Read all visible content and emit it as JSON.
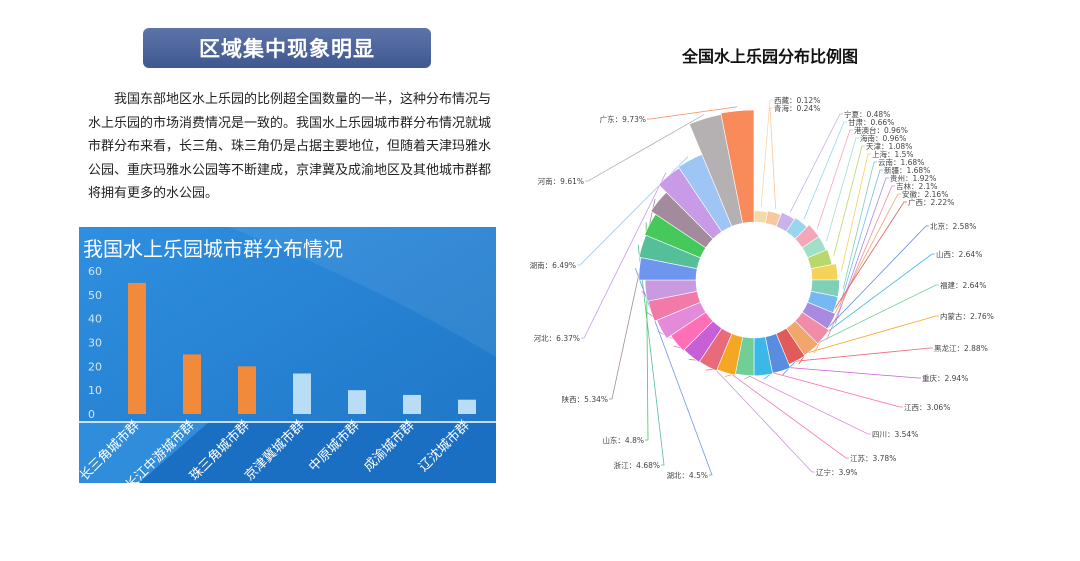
{
  "left": {
    "heading": "区域集中现象明显",
    "paragraph": "我国东部地区水上乐园的比例超全国数量的一半，这种分布情况与水上乐园的市场消费情况是一致的。我国水上乐园城市群分布情况就城市群分布来看，长三角、珠三角仍是占据主要地位，但随着天津玛雅水公园、重庆玛雅水公园等不断建成，京津冀及成渝地区及其他城市群都将拥有更多的水公园。"
  },
  "chart_data": [
    {
      "type": "bar",
      "title": "我国水上乐园城市群分布情况",
      "categories": [
        "长三角城市群",
        "长江中游城市群",
        "珠三角城市群",
        "京津冀城市群",
        "中原城市群",
        "成渝城市群",
        "辽沈城市群"
      ],
      "values": [
        55,
        25,
        20,
        17,
        10,
        8,
        6
      ],
      "colors": [
        "#f28a3c",
        "#f28a3c",
        "#f28a3c",
        "#b9dcf7",
        "#b9dcf7",
        "#b9dcf7",
        "#b9dcf7"
      ],
      "yticks": [
        0,
        10,
        20,
        30,
        40,
        50,
        60
      ],
      "ylim": [
        0,
        60
      ],
      "grid": false,
      "background": "#2a86d6"
    },
    {
      "type": "pie",
      "variant": "rose-donut",
      "title": "全国水上乐园分布比例图",
      "label_format": "{name}：{value}%",
      "slices": [
        {
          "name": "西藏",
          "value": 0.12,
          "color": "#f5d9a8"
        },
        {
          "name": "青海",
          "value": 0.24,
          "color": "#f7c7a0"
        },
        {
          "name": "宁夏",
          "value": 0.48,
          "color": "#c9b3e8"
        },
        {
          "name": "甘肃",
          "value": 0.66,
          "color": "#9ad5f0"
        },
        {
          "name": "港澳台",
          "value": 0.96,
          "color": "#f4a7b9"
        },
        {
          "name": "海南",
          "value": 0.96,
          "color": "#a0e0c8"
        },
        {
          "name": "天津",
          "value": 1.08,
          "color": "#b8d86b"
        },
        {
          "name": "上海",
          "value": 1.5,
          "color": "#f3d35a"
        },
        {
          "name": "云南",
          "value": 1.68,
          "color": "#7fd0b6"
        },
        {
          "name": "新疆",
          "value": 1.68,
          "color": "#76b9f2"
        },
        {
          "name": "贵州",
          "value": 1.92,
          "color": "#a88be0"
        },
        {
          "name": "吉林",
          "value": 2.1,
          "color": "#f08ca8"
        },
        {
          "name": "安徽",
          "value": 2.16,
          "color": "#f2a66b"
        },
        {
          "name": "广西",
          "value": 2.22,
          "color": "#e25b5b"
        },
        {
          "name": "北京",
          "value": 2.58,
          "color": "#5a8de0"
        },
        {
          "name": "山西",
          "value": 2.64,
          "color": "#3cb8e8"
        },
        {
          "name": "福建",
          "value": 2.64,
          "color": "#6fcf97"
        },
        {
          "name": "内蒙古",
          "value": 2.76,
          "color": "#f5a623"
        },
        {
          "name": "黑龙江",
          "value": 2.88,
          "color": "#e96a7a"
        },
        {
          "name": "重庆",
          "value": 2.94,
          "color": "#c75fd6"
        },
        {
          "name": "江西",
          "value": 3.06,
          "color": "#ff6fb5"
        },
        {
          "name": "四川",
          "value": 3.54,
          "color": "#e38ad8"
        },
        {
          "name": "江苏",
          "value": 3.78,
          "color": "#f17aa9"
        },
        {
          "name": "辽宁",
          "value": 3.9,
          "color": "#c89ae0"
        },
        {
          "name": "湖北",
          "value": 4.5,
          "color": "#6f96ee"
        },
        {
          "name": "浙江",
          "value": 4.68,
          "color": "#55bf9a"
        },
        {
          "name": "山东",
          "value": 4.8,
          "color": "#45c95a"
        },
        {
          "name": "陕西",
          "value": 5.34,
          "color": "#a38a9c"
        },
        {
          "name": "河北",
          "value": 6.37,
          "color": "#c89ae8"
        },
        {
          "name": "湖南",
          "value": 6.49,
          "color": "#9fc5f5"
        },
        {
          "name": "河南",
          "value": 9.61,
          "color": "#b5b0b2"
        },
        {
          "name": "广东",
          "value": 9.73,
          "color": "#f98a5a"
        }
      ]
    }
  ]
}
